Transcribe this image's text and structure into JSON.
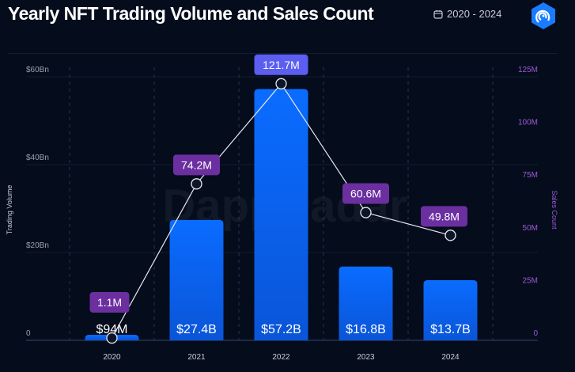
{
  "header": {
    "title": "Yearly NFT Trading Volume and Sales Count",
    "date_range": "2020 - 2024",
    "calendar_icon": "calendar-icon",
    "logo": "dappradar-logo"
  },
  "watermark": "DappRadar",
  "colors": {
    "bar": "#0a6cff",
    "line": "#ffffff",
    "label_bg": "#6b2fa0",
    "peak_label_bg": "#5b5ef0",
    "right_axis": "#9b59d6"
  },
  "chart_data": {
    "type": "bar",
    "categories": [
      "2020",
      "2021",
      "2022",
      "2023",
      "2024"
    ],
    "series": [
      {
        "name": "Trading Volume",
        "type": "bar",
        "axis": "left",
        "values": [
          0.094,
          27.4,
          57.2,
          16.8,
          13.7
        ],
        "labels": [
          "$94M",
          "$27.4B",
          "$57.2B",
          "$16.8B",
          "$13.7B"
        ]
      },
      {
        "name": "Sales Count",
        "type": "line",
        "axis": "right",
        "values": [
          1.1,
          74.2,
          121.7,
          60.6,
          49.8
        ],
        "labels": [
          "1.1M",
          "74.2M",
          "121.7M",
          "60.6M",
          "49.8M"
        ]
      }
    ],
    "ylabel": "Trading Volume",
    "y2label": "Sales Count",
    "ylim": [
      0,
      60
    ],
    "y2lim": [
      0,
      125
    ],
    "yticks": [
      "0",
      "$20Bn",
      "$40Bn",
      "$60Bn"
    ],
    "y2ticks": [
      "0",
      "25M",
      "50M",
      "75M",
      "100M",
      "125M"
    ],
    "grid": true
  }
}
